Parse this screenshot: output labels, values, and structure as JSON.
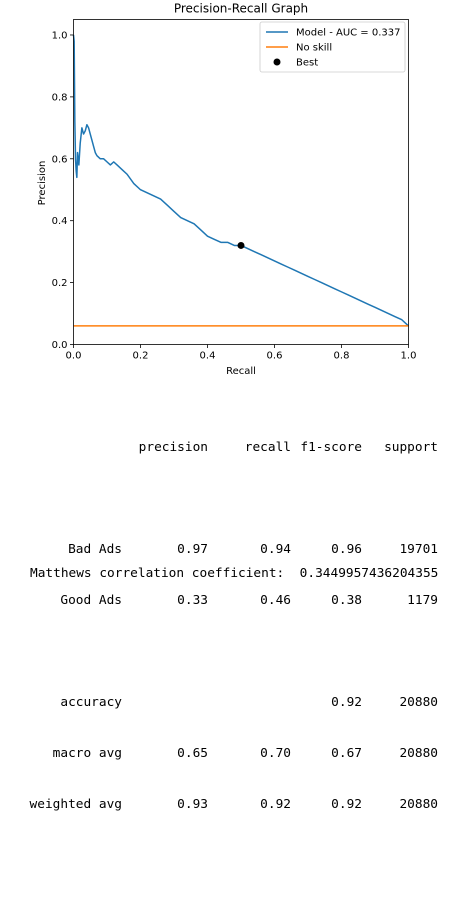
{
  "chart_data": {
    "type": "line",
    "title": "Precision-Recall Graph",
    "xlabel": "Recall",
    "ylabel": "Precision",
    "xlim": [
      0.0,
      1.0
    ],
    "ylim": [
      0.0,
      1.05
    ],
    "xticks": [
      "0.0",
      "0.2",
      "0.4",
      "0.6",
      "0.8",
      "1.0"
    ],
    "yticks": [
      "0.0",
      "0.2",
      "0.4",
      "0.6",
      "0.8",
      "1.0"
    ],
    "legend_position": "top-right",
    "grid": false,
    "series": [
      {
        "name": "Model - AUC = 0.337",
        "color": "#1f77b4",
        "x": [
          0.0,
          0.002,
          0.004,
          0.006,
          0.008,
          0.01,
          0.012,
          0.014,
          0.016,
          0.02,
          0.025,
          0.03,
          0.035,
          0.04,
          0.045,
          0.05,
          0.055,
          0.06,
          0.065,
          0.07,
          0.08,
          0.09,
          0.1,
          0.11,
          0.12,
          0.13,
          0.14,
          0.15,
          0.16,
          0.18,
          0.2,
          0.22,
          0.24,
          0.26,
          0.28,
          0.3,
          0.32,
          0.34,
          0.36,
          0.38,
          0.4,
          0.42,
          0.44,
          0.46,
          0.48,
          0.5,
          0.52,
          0.54,
          0.56,
          0.58,
          0.6,
          0.62,
          0.64,
          0.66,
          0.68,
          0.7,
          0.72,
          0.74,
          0.76,
          0.78,
          0.8,
          0.82,
          0.84,
          0.86,
          0.88,
          0.9,
          0.92,
          0.94,
          0.96,
          0.98,
          1.0
        ],
        "y": [
          1.0,
          0.98,
          0.72,
          0.6,
          0.56,
          0.54,
          0.62,
          0.6,
          0.58,
          0.65,
          0.7,
          0.68,
          0.69,
          0.71,
          0.7,
          0.68,
          0.66,
          0.64,
          0.62,
          0.61,
          0.6,
          0.6,
          0.59,
          0.58,
          0.59,
          0.58,
          0.57,
          0.56,
          0.55,
          0.52,
          0.5,
          0.49,
          0.48,
          0.47,
          0.45,
          0.43,
          0.41,
          0.4,
          0.39,
          0.37,
          0.35,
          0.34,
          0.33,
          0.33,
          0.32,
          0.32,
          0.31,
          0.3,
          0.29,
          0.28,
          0.27,
          0.26,
          0.25,
          0.24,
          0.23,
          0.22,
          0.21,
          0.2,
          0.19,
          0.18,
          0.17,
          0.16,
          0.15,
          0.14,
          0.13,
          0.12,
          0.11,
          0.1,
          0.09,
          0.08,
          0.06
        ]
      },
      {
        "name": "No skill",
        "color": "#ff7f0e",
        "x": [
          0.0,
          1.0
        ],
        "y": [
          0.06,
          0.06
        ]
      },
      {
        "name": "Best",
        "color": "#000000",
        "x": [
          0.5
        ],
        "y": [
          0.32
        ]
      }
    ]
  },
  "report": {
    "header": [
      "precision",
      "recall",
      "f1-score",
      "support"
    ],
    "rows": [
      {
        "label": "Bad Ads",
        "precision": "0.97",
        "recall": "0.94",
        "f1": "0.96",
        "support": "19701"
      },
      {
        "label": "Good Ads",
        "precision": "0.33",
        "recall": "0.46",
        "f1": "0.38",
        "support": "1179"
      }
    ],
    "summary": [
      {
        "label": "accuracy",
        "precision": "",
        "recall": "",
        "f1": "0.92",
        "support": "20880"
      },
      {
        "label": "macro avg",
        "precision": "0.65",
        "recall": "0.70",
        "f1": "0.67",
        "support": "20880"
      },
      {
        "label": "weighted avg",
        "precision": "0.93",
        "recall": "0.92",
        "f1": "0.92",
        "support": "20880"
      }
    ],
    "mcc_label": "Matthews correlation coefficient:",
    "mcc_value": "0.3449957436204355"
  }
}
